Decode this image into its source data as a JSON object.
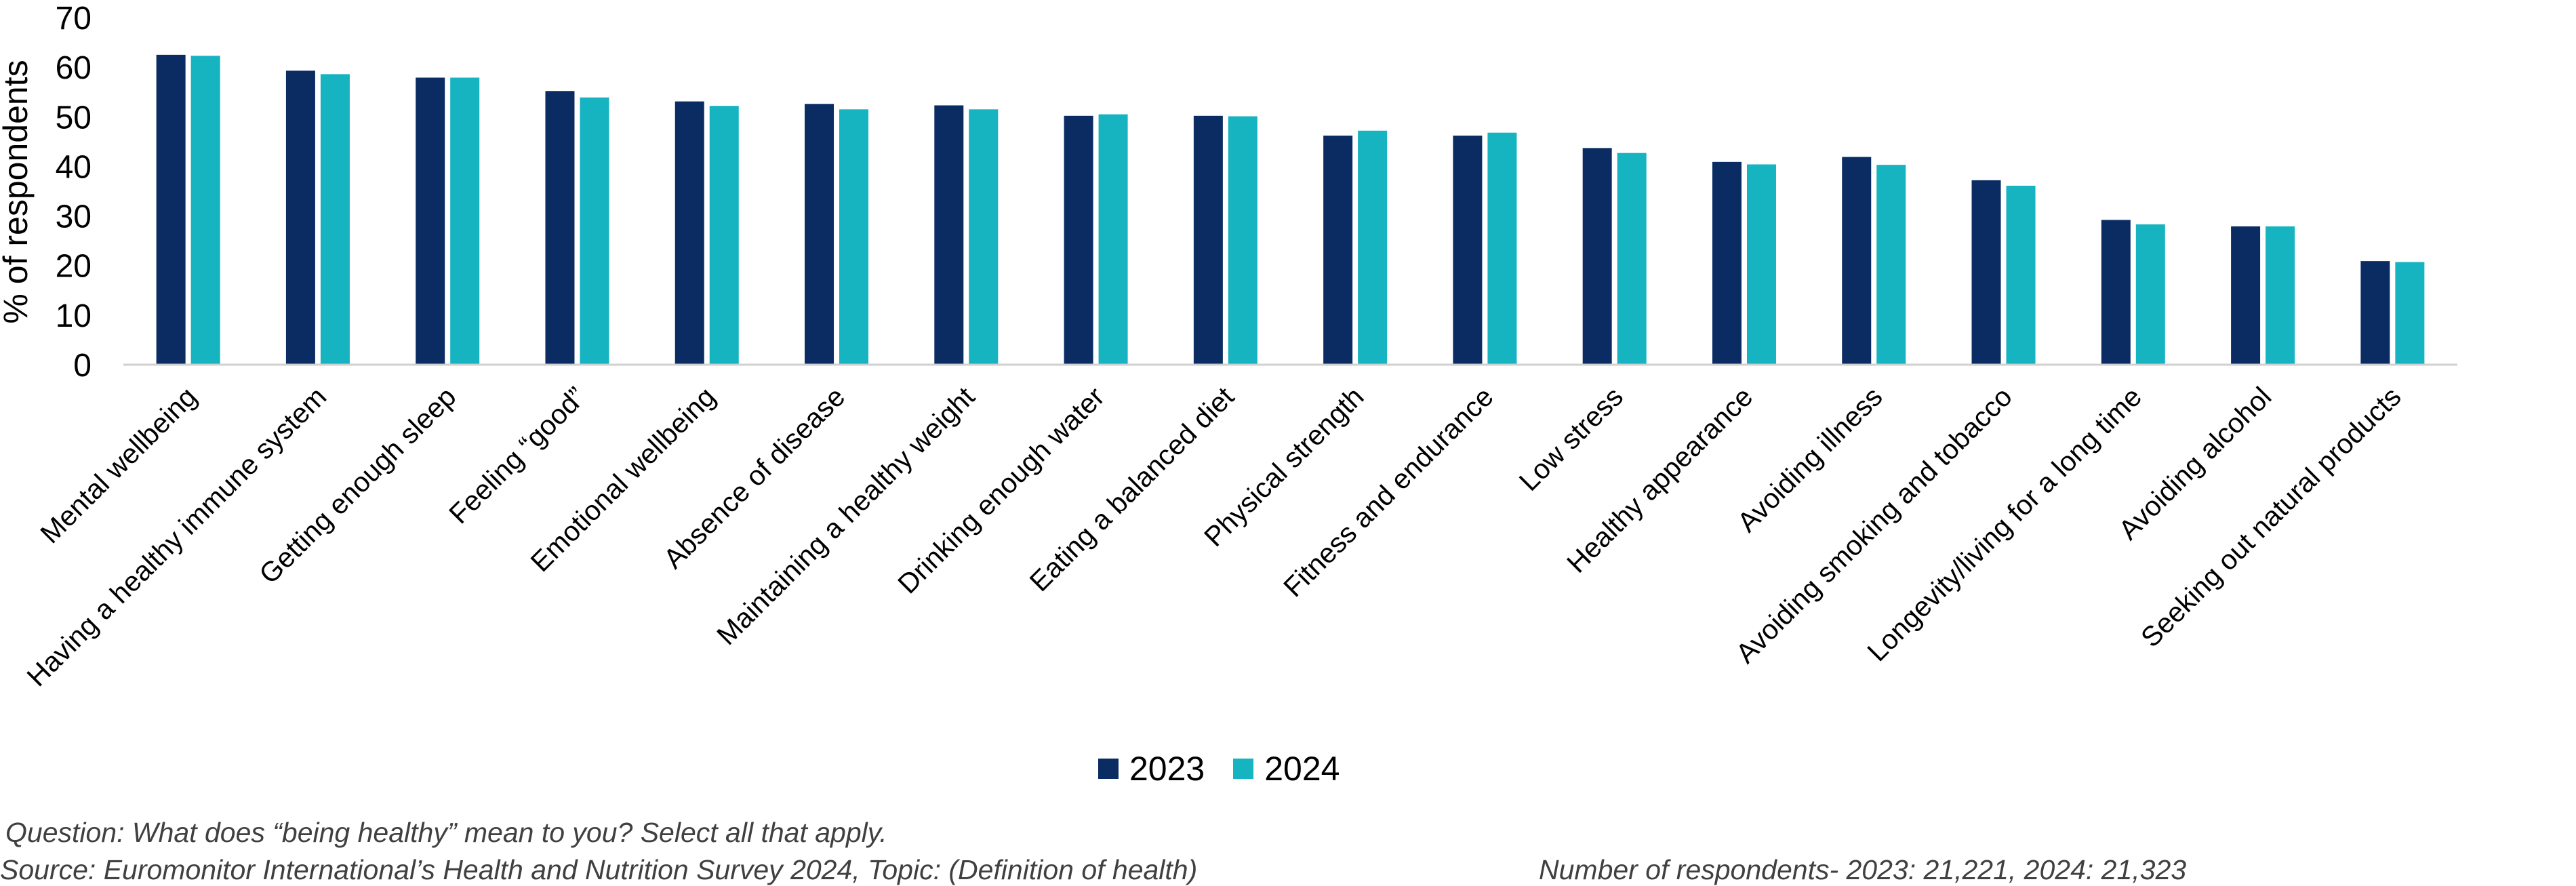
{
  "chart_data": {
    "type": "bar",
    "ylabel": "% of respondents",
    "ylim": [
      0,
      70
    ],
    "yticks": [
      0,
      10,
      20,
      30,
      40,
      50,
      60,
      70
    ],
    "grid": false,
    "legend_position": "bottom",
    "categories": [
      "Mental wellbeing",
      "Having a healthy immune system",
      "Getting enough sleep",
      "Feeling “good”",
      "Emotional wellbeing",
      "Absence of disease",
      "Maintaining a healthy weight",
      "Drinking enough water",
      "Eating a balanced diet",
      "Physical strength",
      "Fitness and endurance",
      "Low stress",
      "Healthy appearance",
      "Avoiding illness",
      "Avoiding smoking and tobacco",
      "Longevity/living for a long time",
      "Avoiding alcohol",
      "Seeking out natural products"
    ],
    "series": [
      {
        "name": "2023",
        "color": "#0a2c63",
        "values": [
          62.5,
          59.3,
          57.9,
          55.2,
          53.1,
          52.6,
          52.3,
          50.2,
          50.2,
          46.2,
          46.2,
          43.7,
          40.9,
          41.9,
          37.2,
          29.2,
          27.9,
          20.9
        ]
      },
      {
        "name": "2024",
        "color": "#16b3c1",
        "values": [
          62.3,
          58.6,
          57.9,
          53.9,
          52.2,
          51.5,
          51.5,
          50.5,
          50.1,
          47.2,
          46.8,
          42.7,
          40.4,
          40.3,
          36.1,
          28.3,
          27.9,
          20.7
        ]
      }
    ]
  },
  "notes": {
    "question": "Question: What does “being healthy” mean to you? Select all that apply.",
    "source": "Source: Euromonitor International’s Health and Nutrition Survey 2024, Topic: (Definition of health)",
    "respondents": "Number of respondents-  2023: 21,221, 2024: 21,323"
  }
}
